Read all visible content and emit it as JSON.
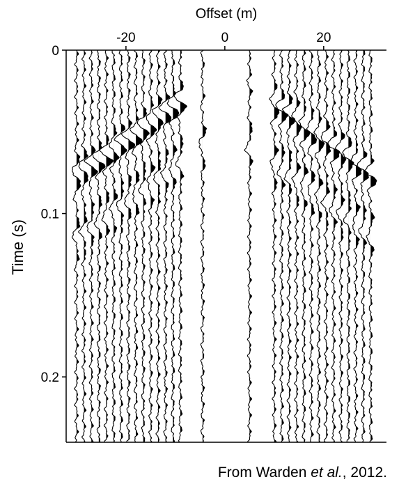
{
  "chart_data": {
    "type": "wiggle",
    "title": "Offset (m)",
    "y_label": "Time (s)",
    "xlim": [
      -32.1,
      32.7
    ],
    "xticks": [
      -20,
      0,
      20
    ],
    "ylim": [
      0,
      0.24
    ],
    "yticks": [
      0,
      0.1,
      0.2
    ],
    "traces": [
      -30,
      -28.5,
      -27,
      -25.5,
      -24,
      -22.5,
      -21,
      -19.5,
      -18,
      -16.5,
      -15,
      -13.5,
      -12,
      -10.5,
      -9,
      -4.5,
      5,
      10,
      11.5,
      13,
      14.5,
      16,
      17.5,
      19,
      20.5,
      22,
      23.5,
      25,
      26.5,
      28,
      29.5
    ],
    "color": "#000000"
  },
  "caption": {
    "prefix": "From Warden ",
    "italic": "et al.",
    "suffix": ", 2012."
  }
}
